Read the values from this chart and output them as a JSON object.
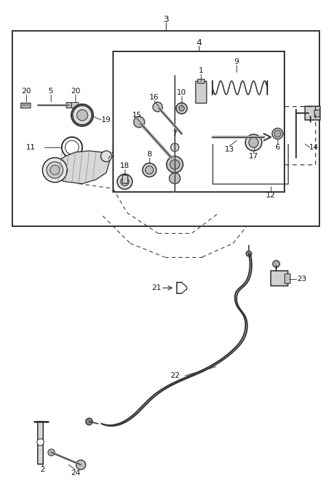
{
  "bg_color": "#ffffff",
  "line_color": "#333333",
  "label_color": "#111111",
  "fig_width": 4.8,
  "fig_height": 7.25,
  "dpi": 100
}
